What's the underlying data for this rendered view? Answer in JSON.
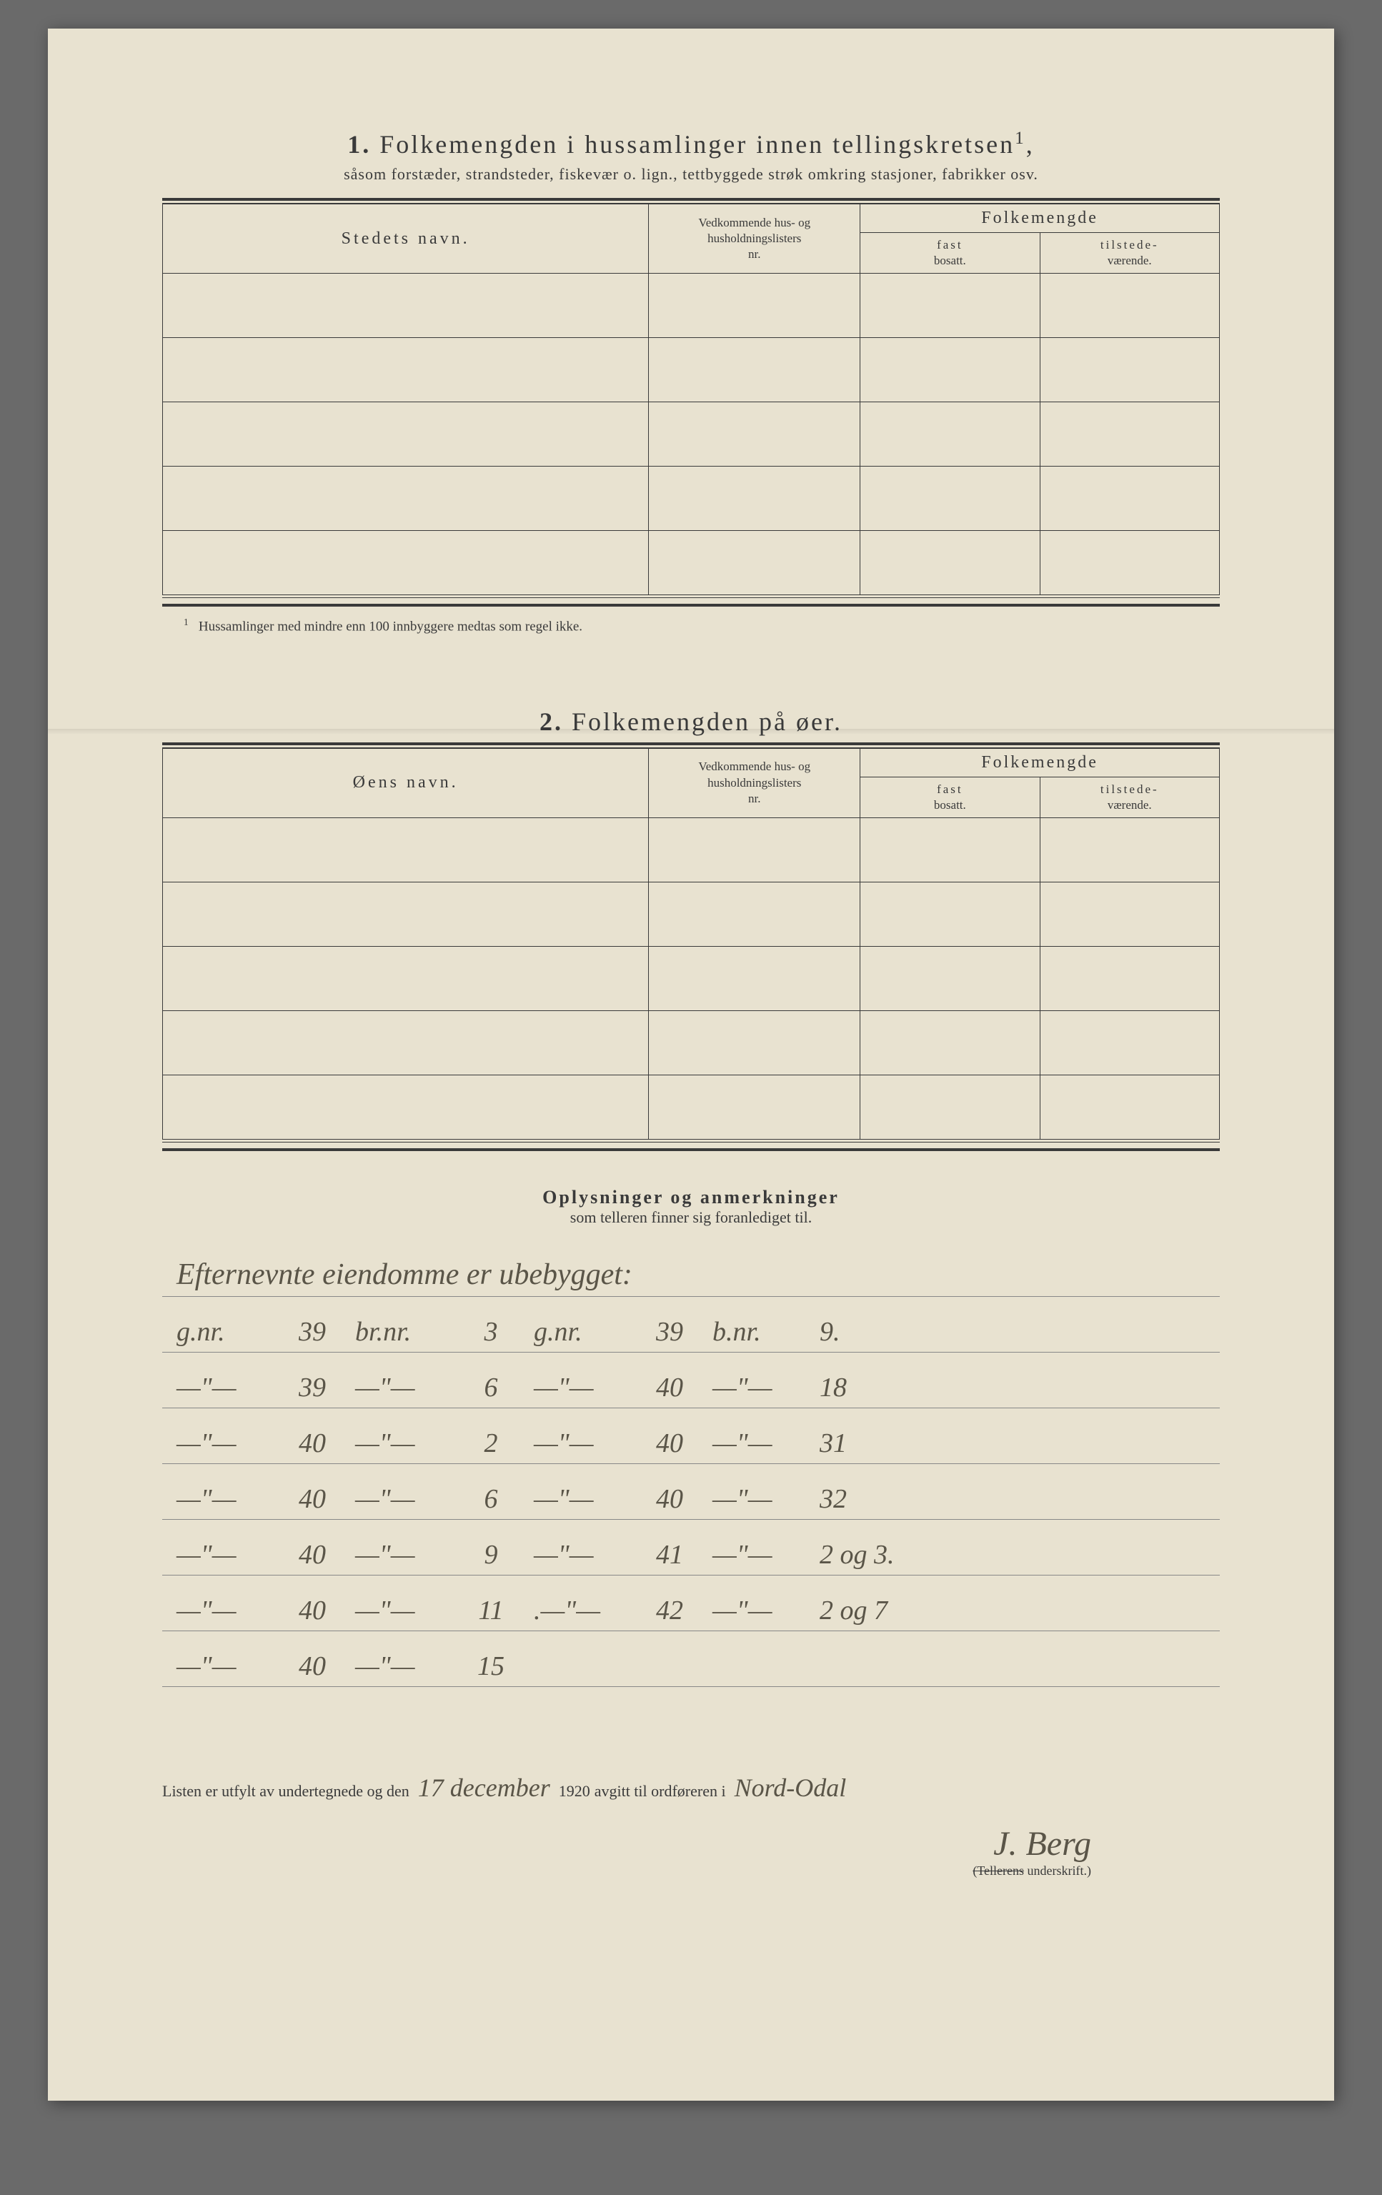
{
  "page": {
    "background": "#e8e2d0",
    "text_color": "#3a3a3a",
    "hand_color": "#5a5548"
  },
  "section1": {
    "number": "1.",
    "title": "Folkemengden i hussamlinger innen tellingskretsen",
    "title_sup": "1",
    "subtitle": "såsom forstæder, strandsteder, fiskevær o. lign., tettbyggede strøk omkring stasjoner, fabrikker osv.",
    "col1": "Stedets navn.",
    "col2_l1": "Vedkommende hus- og",
    "col2_l2": "husholdningslisters",
    "col2_l3": "nr.",
    "col3": "Folkemengde",
    "col3a_l1": "fast",
    "col3a_l2": "bosatt.",
    "col3b_l1": "tilstede-",
    "col3b_l2": "værende.",
    "footnote_marker": "1",
    "footnote": "Hussamlinger med mindre enn 100 innbyggere medtas som regel ikke."
  },
  "section2": {
    "number": "2.",
    "title": "Folkemengden på øer.",
    "col1": "Øens navn.",
    "col2_l1": "Vedkommende hus- og",
    "col2_l2": "husholdningslisters",
    "col2_l3": "nr.",
    "col3": "Folkemengde",
    "col3a_l1": "fast",
    "col3a_l2": "bosatt.",
    "col3b_l1": "tilstede-",
    "col3b_l2": "værende."
  },
  "anmerk": {
    "title": "Oplysninger og anmerkninger",
    "subtitle": "som telleren finner sig foranlediget til.",
    "header_text": "Efternevnte eiendomme er ubebygget:",
    "rows": [
      {
        "a_lbl": "g.nr.",
        "a": "39",
        "b_lbl": "br.nr.",
        "b": "3",
        "c_lbl": "g.nr.",
        "c": "39",
        "d_lbl": "b.nr.",
        "d": "9."
      },
      {
        "a_lbl": "—\"—",
        "a": "39",
        "b_lbl": "—\"—",
        "b": "6",
        "c_lbl": "—\"—",
        "c": "40",
        "d_lbl": "—\"—",
        "d": "18"
      },
      {
        "a_lbl": "—\"—",
        "a": "40",
        "b_lbl": "—\"—",
        "b": "2",
        "c_lbl": "—\"—",
        "c": "40",
        "d_lbl": "—\"—",
        "d": "31"
      },
      {
        "a_lbl": "—\"—",
        "a": "40",
        "b_lbl": "—\"—",
        "b": "6",
        "c_lbl": "—\"—",
        "c": "40",
        "d_lbl": "—\"—",
        "d": "32"
      },
      {
        "a_lbl": "—\"—",
        "a": "40",
        "b_lbl": "—\"—",
        "b": "9",
        "c_lbl": "—\"—",
        "c": "41",
        "d_lbl": "—\"—",
        "d": "2 og 3."
      },
      {
        "a_lbl": "—\"—",
        "a": "40",
        "b_lbl": "—\"—",
        "b": "11",
        "c_lbl": ".—\"—",
        "c": "42",
        "d_lbl": "—\"—",
        "d": "2 og 7"
      },
      {
        "a_lbl": "—\"—",
        "a": "40",
        "b_lbl": "—\"—",
        "b": "15",
        "c_lbl": "",
        "c": "",
        "d_lbl": "",
        "d": ""
      }
    ]
  },
  "closing": {
    "pre1": "Listen er utfylt av undertegnede og den",
    "date_hand": "17 december",
    "year": "1920",
    "mid": "avgitt til ordføreren i",
    "place_hand": "Nord-Odal",
    "signature": "J. Berg",
    "sign_label_strike": "(Tellerens",
    "sign_label_rest": " underskrift.)"
  }
}
